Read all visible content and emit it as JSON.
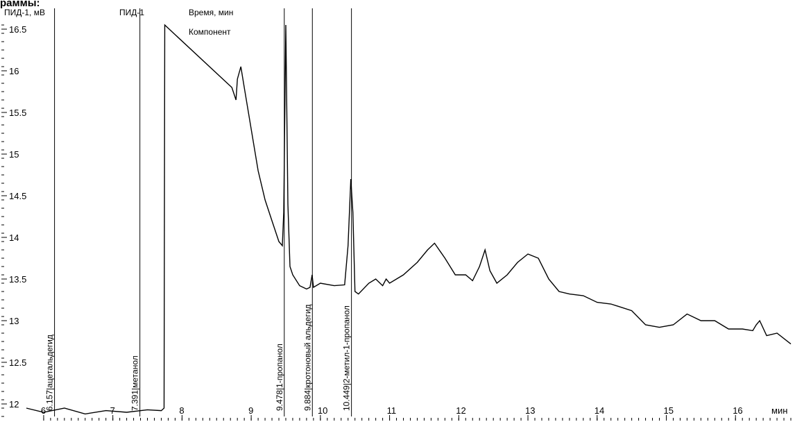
{
  "page": {
    "heading": "раммы:"
  },
  "chart_data": {
    "type": "line",
    "title": "",
    "detector": "ПИД-1",
    "ylabel": "ПИД-1, мВ",
    "header_time": "Время, мин",
    "header_component": "Компонент",
    "xunit": "мин",
    "xlim": [
      5.75,
      16.8
    ],
    "ylim": [
      11.85,
      16.55
    ],
    "x_ticks": [
      6,
      7,
      8,
      9,
      10,
      11,
      12,
      13,
      14,
      15,
      16
    ],
    "y_ticks": [
      12,
      12.5,
      13,
      13.5,
      14,
      14.5,
      15,
      15.5,
      16,
      16.5
    ],
    "y_tick_labels": [
      "12",
      "12.5",
      "13",
      "13.5",
      "14",
      "14.5",
      "15",
      "15.5",
      "16",
      "16.5"
    ],
    "x_tick_labels": [
      "6",
      "7",
      "8",
      "9",
      "10",
      "11",
      "12",
      "13",
      "14",
      "15",
      "16"
    ],
    "peaks": [
      {
        "time": "6.157",
        "component": "ацетальдегид",
        "x": 6.157
      },
      {
        "time": "7.391",
        "component": "метанол",
        "x": 7.391
      },
      {
        "time": "9.478",
        "component": "1-пропанол",
        "x": 9.478
      },
      {
        "time": "9.884",
        "component": "кротоновый альдегид",
        "x": 9.884
      },
      {
        "time": "10.449",
        "component": "2-метил-1-пропанол",
        "x": 10.449
      }
    ],
    "series": [
      {
        "x": [
          5.75,
          6.0,
          6.3,
          6.6,
          6.9,
          7.2,
          7.5,
          7.7,
          7.74,
          7.75,
          8.72,
          8.78,
          8.8,
          8.85,
          8.9,
          9.0,
          9.1,
          9.2,
          9.3,
          9.4,
          9.45,
          9.47,
          9.5,
          9.53,
          9.56,
          9.6,
          9.7,
          9.8,
          9.85,
          9.88,
          9.9,
          10.0,
          10.2,
          10.35,
          10.4,
          10.44,
          10.47,
          10.5,
          10.55,
          10.7,
          10.8,
          10.9,
          10.95,
          11.0,
          11.2,
          11.4,
          11.55,
          11.65,
          11.8,
          11.95,
          12.1,
          12.2,
          12.3,
          12.38,
          12.45,
          12.55,
          12.7,
          12.85,
          13.0,
          13.15,
          13.3,
          13.45,
          13.6,
          13.8,
          14.0,
          14.2,
          14.5,
          14.7,
          14.9,
          15.1,
          15.3,
          15.5,
          15.7,
          15.9,
          16.1,
          16.25,
          16.3,
          16.35,
          16.45,
          16.6,
          16.8
        ],
        "values": [
          11.95,
          11.9,
          11.95,
          11.88,
          11.92,
          11.9,
          11.93,
          11.92,
          11.95,
          16.55,
          15.8,
          15.65,
          15.9,
          16.05,
          15.8,
          15.3,
          14.8,
          14.45,
          14.2,
          13.95,
          13.9,
          14.3,
          16.55,
          14.4,
          13.65,
          13.55,
          13.42,
          13.38,
          13.4,
          13.55,
          13.4,
          13.45,
          13.42,
          13.43,
          13.9,
          14.7,
          14.3,
          13.35,
          13.32,
          13.45,
          13.5,
          13.42,
          13.5,
          13.45,
          13.55,
          13.7,
          13.85,
          13.93,
          13.75,
          13.55,
          13.55,
          13.48,
          13.65,
          13.85,
          13.6,
          13.45,
          13.55,
          13.7,
          13.8,
          13.75,
          13.5,
          13.35,
          13.32,
          13.3,
          13.22,
          13.2,
          13.12,
          12.95,
          12.92,
          12.95,
          13.08,
          13.0,
          13.0,
          12.9,
          12.9,
          12.88,
          12.95,
          13.0,
          12.82,
          12.85,
          12.72
        ]
      }
    ]
  }
}
